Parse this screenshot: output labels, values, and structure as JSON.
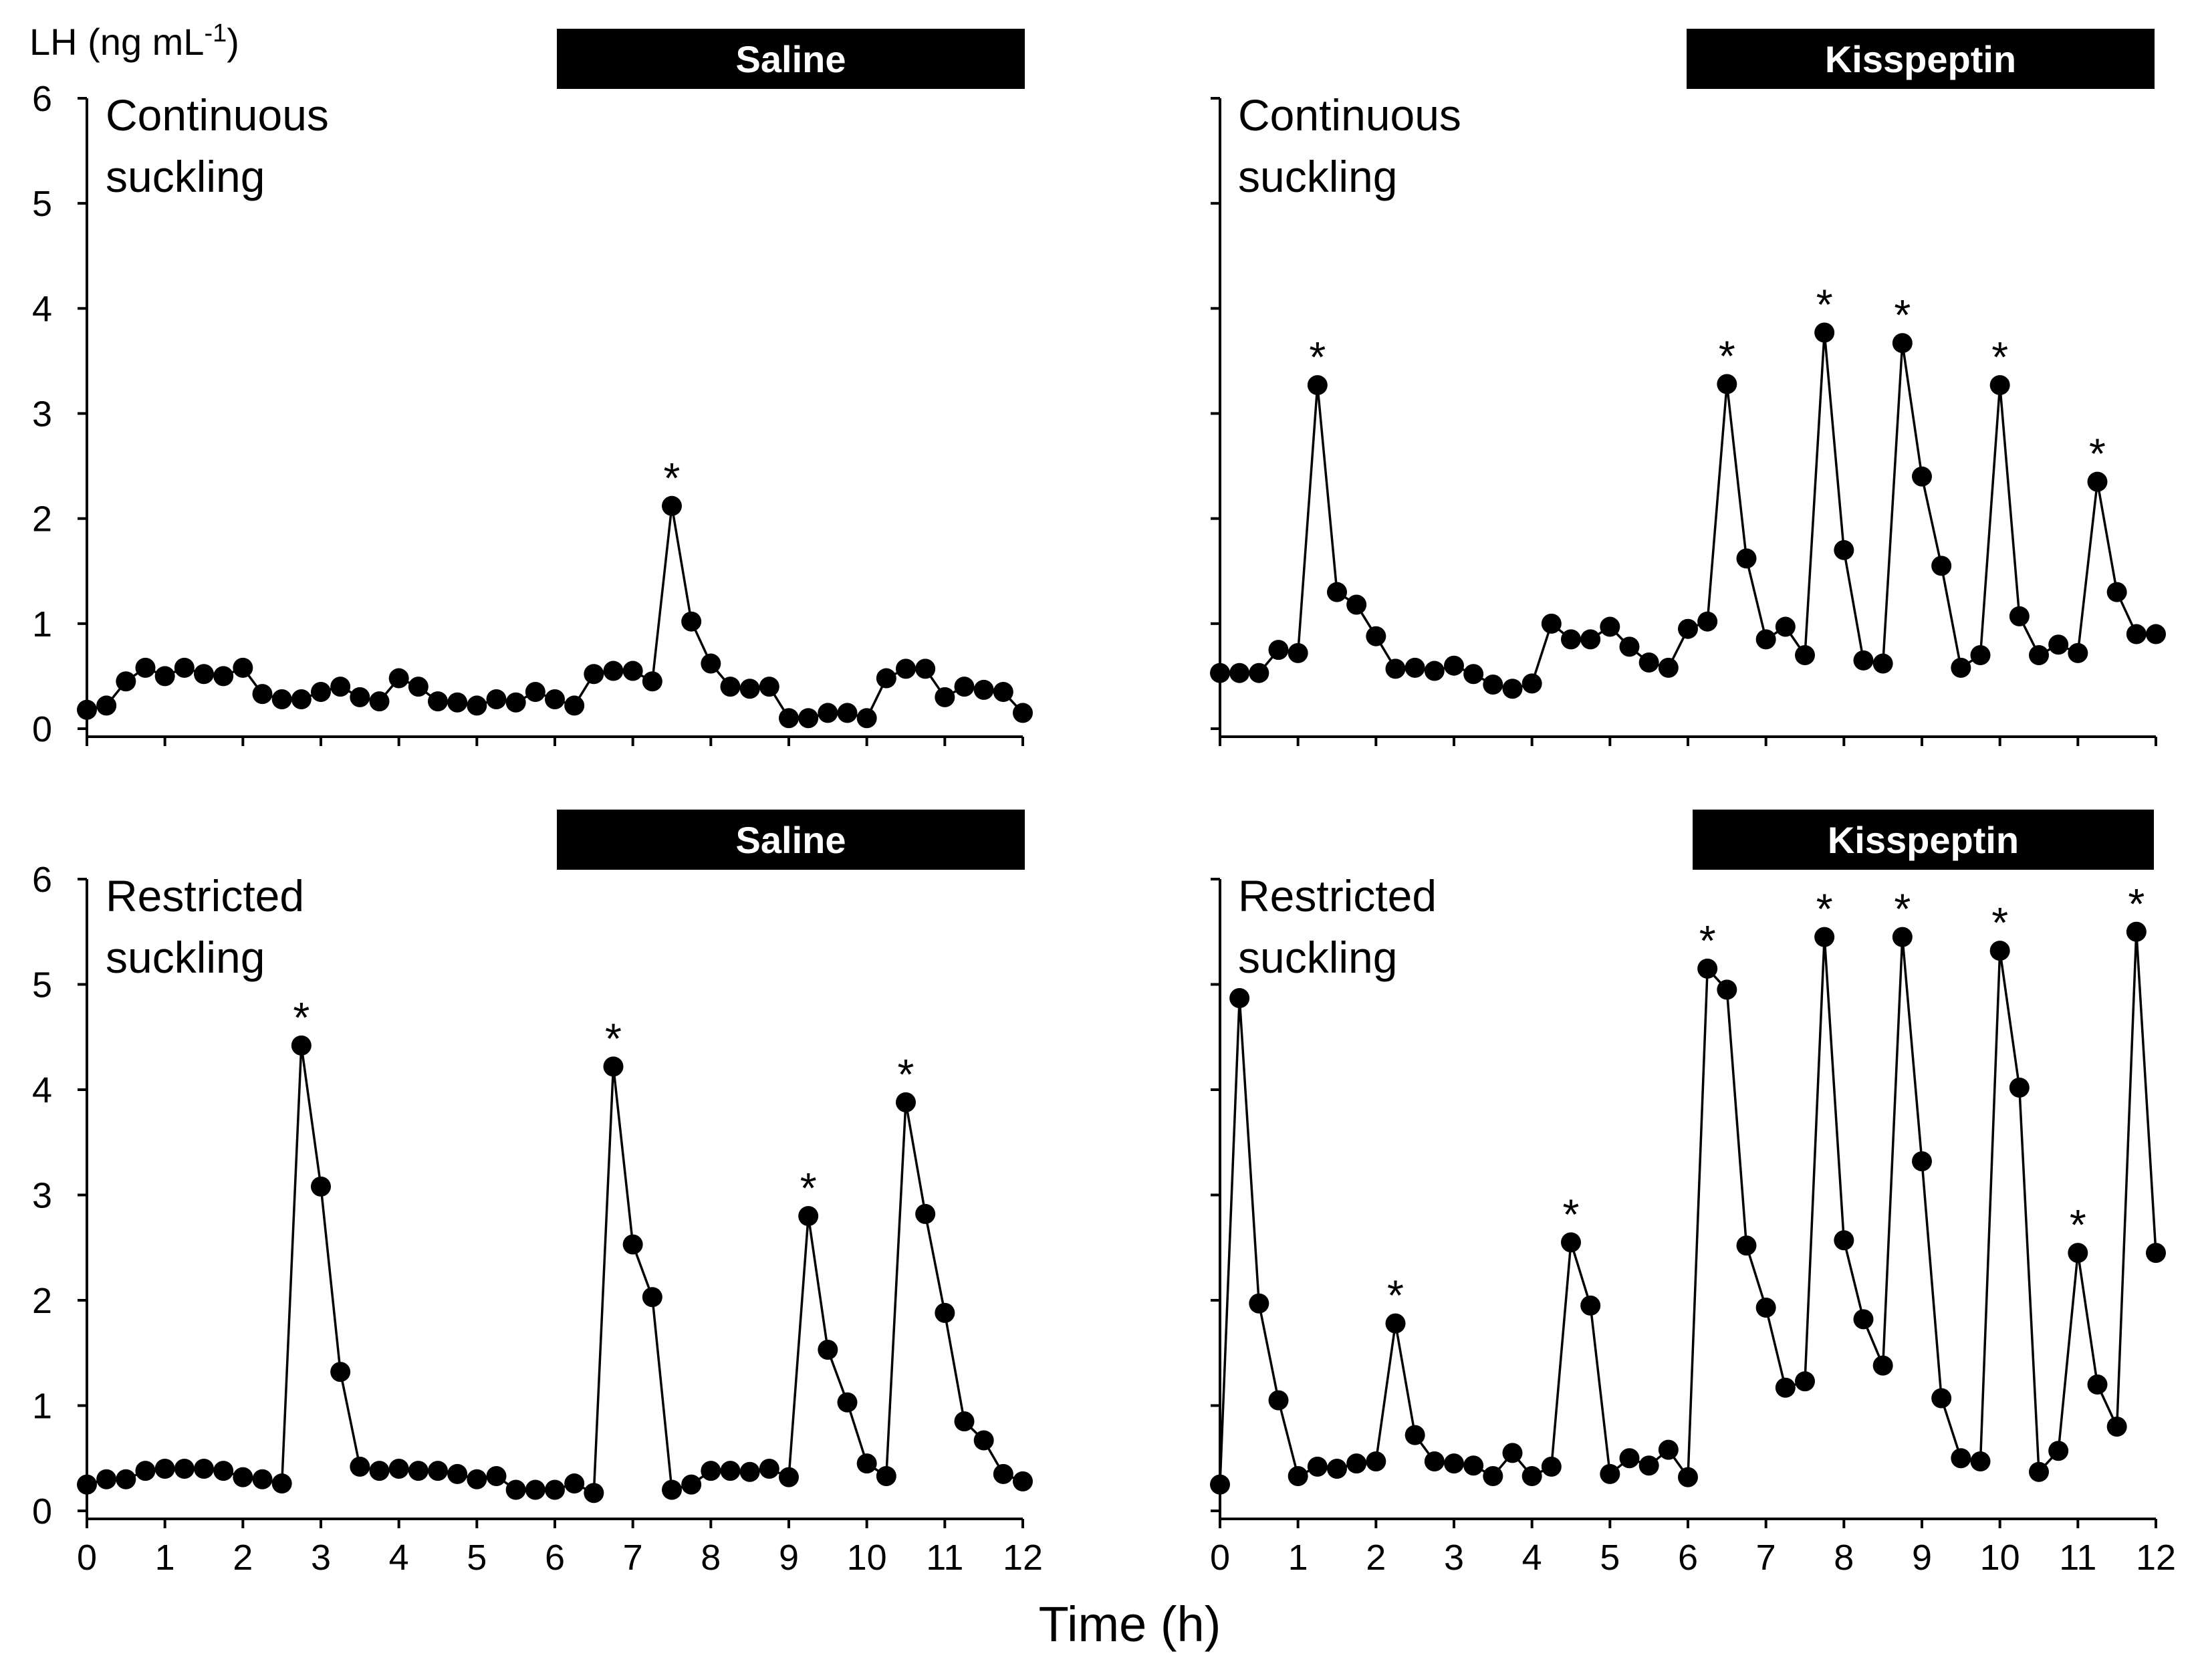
{
  "figure": {
    "ylabel_main": "LH (ng mL",
    "ylabel_sup": "-1",
    "ylabel_close": ")",
    "xlabel": "Time (h)",
    "point_color": "#000000",
    "banner_color": "#000000"
  },
  "chart_data": [
    {
      "type": "line",
      "id": "saline-continuous",
      "treatment": "Saline",
      "condition_line1": "Continuous",
      "condition_line2": "suckling",
      "x": [
        0,
        0.25,
        0.5,
        0.75,
        1,
        1.25,
        1.5,
        1.75,
        2,
        2.25,
        2.5,
        2.75,
        3,
        3.25,
        3.5,
        3.75,
        4,
        4.25,
        4.5,
        4.75,
        5,
        5.25,
        5.5,
        5.75,
        6,
        6.25,
        6.5,
        6.75,
        7,
        7.25,
        7.5,
        7.75,
        8,
        8.25,
        8.5,
        8.75,
        9,
        9.25,
        9.5,
        9.75,
        10,
        10.25,
        10.5,
        10.75,
        11,
        11.25,
        11.5,
        11.75,
        12
      ],
      "values": [
        0.18,
        0.22,
        0.45,
        0.58,
        0.5,
        0.58,
        0.52,
        0.5,
        0.58,
        0.33,
        0.28,
        0.28,
        0.35,
        0.4,
        0.3,
        0.26,
        0.48,
        0.4,
        0.26,
        0.25,
        0.22,
        0.28,
        0.25,
        0.35,
        0.28,
        0.22,
        0.52,
        0.55,
        0.55,
        0.45,
        2.12,
        1.02,
        0.62,
        0.4,
        0.38,
        0.4,
        0.1,
        0.1,
        0.15,
        0.15,
        0.1,
        0.48,
        0.57,
        0.57,
        0.3,
        0.4,
        0.37,
        0.35,
        0.15
      ],
      "peaks": [
        30
      ],
      "xlim": [
        0,
        12
      ],
      "ylim": [
        0,
        6
      ],
      "xticks": [
        0,
        1,
        2,
        3,
        4,
        5,
        6,
        7,
        8,
        9,
        10,
        11,
        12
      ],
      "yticks": [
        0,
        1,
        2,
        3,
        4,
        5,
        6
      ]
    },
    {
      "type": "line",
      "id": "kisspeptin-continuous",
      "treatment": "Kisspeptin",
      "condition_line1": "Continuous",
      "condition_line2": "suckling",
      "x": [
        0,
        0.25,
        0.5,
        0.75,
        1,
        1.25,
        1.5,
        1.75,
        2,
        2.25,
        2.5,
        2.75,
        3,
        3.25,
        3.5,
        3.75,
        4,
        4.25,
        4.5,
        4.75,
        5,
        5.25,
        5.5,
        5.75,
        6,
        6.25,
        6.5,
        6.75,
        7,
        7.25,
        7.5,
        7.75,
        8,
        8.25,
        8.5,
        8.75,
        9,
        9.25,
        9.5,
        9.75,
        10,
        10.25,
        10.5,
        10.75,
        11,
        11.25,
        11.5,
        11.75,
        12
      ],
      "values": [
        0.53,
        0.53,
        0.53,
        0.75,
        0.72,
        3.27,
        1.3,
        1.18,
        0.88,
        0.57,
        0.58,
        0.55,
        0.6,
        0.52,
        0.42,
        0.38,
        0.43,
        1.0,
        0.85,
        0.85,
        0.97,
        0.78,
        0.63,
        0.58,
        0.95,
        1.02,
        3.28,
        1.62,
        0.85,
        0.97,
        0.7,
        3.77,
        1.7,
        0.65,
        0.62,
        3.67,
        2.4,
        1.55,
        0.58,
        0.7,
        3.27,
        1.07,
        0.7,
        0.8,
        0.72,
        2.35,
        1.3,
        0.9,
        0.9
      ],
      "peaks": [
        5,
        26,
        31,
        35,
        40,
        45
      ],
      "xlim": [
        0,
        12
      ],
      "ylim": [
        0,
        6
      ],
      "xticks": [
        0,
        1,
        2,
        3,
        4,
        5,
        6,
        7,
        8,
        9,
        10,
        11,
        12
      ],
      "yticks": [
        0,
        1,
        2,
        3,
        4,
        5,
        6
      ]
    },
    {
      "type": "line",
      "id": "saline-restricted",
      "treatment": "Saline",
      "condition_line1": "Restricted",
      "condition_line2": "suckling",
      "x": [
        0,
        0.25,
        0.5,
        0.75,
        1,
        1.25,
        1.5,
        1.75,
        2,
        2.25,
        2.5,
        2.75,
        3,
        3.25,
        3.5,
        3.75,
        4,
        4.25,
        4.5,
        4.75,
        5,
        5.25,
        5.5,
        5.75,
        6,
        6.25,
        6.5,
        6.75,
        7,
        7.25,
        7.5,
        7.75,
        8,
        8.25,
        8.5,
        8.75,
        9,
        9.25,
        9.5,
        9.75,
        10,
        10.25,
        10.5,
        10.75,
        11,
        11.25,
        11.5,
        11.75,
        12
      ],
      "values": [
        0.25,
        0.3,
        0.3,
        0.38,
        0.4,
        0.4,
        0.4,
        0.38,
        0.32,
        0.3,
        0.26,
        4.42,
        3.08,
        1.32,
        0.42,
        0.38,
        0.4,
        0.38,
        0.38,
        0.35,
        0.3,
        0.33,
        0.2,
        0.2,
        0.2,
        0.26,
        0.17,
        4.22,
        2.53,
        2.03,
        0.2,
        0.25,
        0.38,
        0.38,
        0.37,
        0.4,
        0.32,
        2.8,
        1.53,
        1.03,
        0.45,
        0.33,
        3.88,
        2.82,
        1.88,
        0.85,
        0.67,
        0.35,
        0.28
      ],
      "peaks": [
        11,
        27,
        37,
        42
      ],
      "xlim": [
        0,
        12
      ],
      "ylim": [
        0,
        6
      ],
      "xticks": [
        0,
        1,
        2,
        3,
        4,
        5,
        6,
        7,
        8,
        9,
        10,
        11,
        12
      ],
      "yticks": [
        0,
        1,
        2,
        3,
        4,
        5,
        6
      ]
    },
    {
      "type": "line",
      "id": "kisspeptin-restricted",
      "treatment": "Kisspeptin",
      "condition_line1": "Restricted",
      "condition_line2": "suckling",
      "x": [
        0,
        0.25,
        0.5,
        0.75,
        1,
        1.25,
        1.5,
        1.75,
        2,
        2.25,
        2.5,
        2.75,
        3,
        3.25,
        3.5,
        3.75,
        4,
        4.25,
        4.5,
        4.75,
        5,
        5.25,
        5.5,
        5.75,
        6,
        6.25,
        6.5,
        6.75,
        7,
        7.25,
        7.5,
        7.75,
        8,
        8.25,
        8.5,
        8.75,
        9,
        9.25,
        9.5,
        9.75,
        10,
        10.25,
        10.5,
        10.75,
        11,
        11.25,
        11.5,
        11.75,
        12
      ],
      "values": [
        0.25,
        4.87,
        1.97,
        1.05,
        0.33,
        0.42,
        0.4,
        0.45,
        0.47,
        1.78,
        0.72,
        0.47,
        0.45,
        0.43,
        0.33,
        0.55,
        0.33,
        0.42,
        2.55,
        1.95,
        0.35,
        0.5,
        0.43,
        0.58,
        0.32,
        5.15,
        4.95,
        2.52,
        1.93,
        1.17,
        1.23,
        5.45,
        2.57,
        1.82,
        1.38,
        5.45,
        3.32,
        1.07,
        0.5,
        0.47,
        5.32,
        4.02,
        0.37,
        0.57,
        2.45,
        1.2,
        0.8,
        5.5,
        2.45
      ],
      "peaks": [
        9,
        18,
        25,
        31,
        35,
        40,
        44,
        47
      ],
      "xlim": [
        0,
        12
      ],
      "ylim": [
        0,
        6
      ],
      "xticks": [
        0,
        1,
        2,
        3,
        4,
        5,
        6,
        7,
        8,
        9,
        10,
        11,
        12
      ],
      "yticks": [
        0,
        1,
        2,
        3,
        4,
        5,
        6
      ]
    }
  ]
}
